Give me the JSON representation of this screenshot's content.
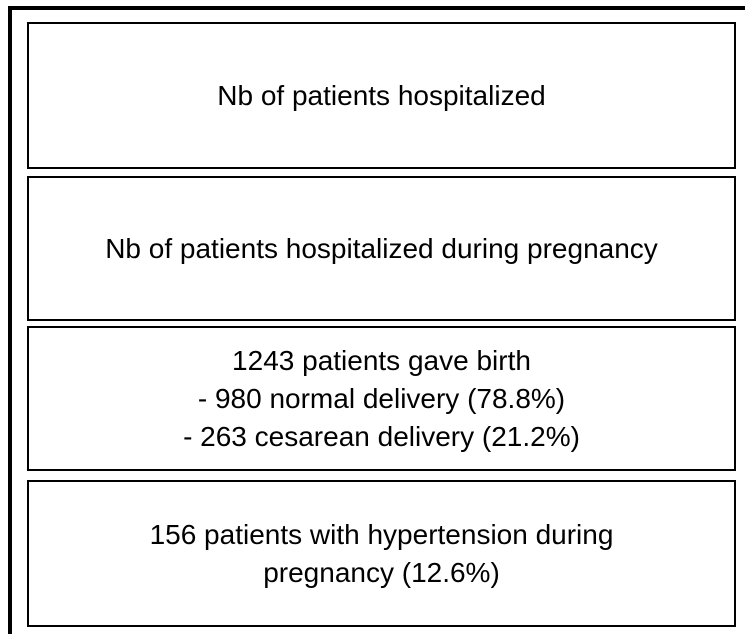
{
  "boxes": [
    {
      "lines": [
        "Nb of patients hospitalized"
      ]
    },
    {
      "lines": [
        "Nb of patients hospitalized during pregnancy"
      ]
    },
    {
      "lines": [
        "1243 patients gave birth",
        "- 980 normal delivery (78.8%)",
        "- 263 cesarean delivery (21.2%)"
      ]
    },
    {
      "lines": [
        "156 patients with hypertension during",
        "pregnancy (12.6%)"
      ]
    }
  ]
}
